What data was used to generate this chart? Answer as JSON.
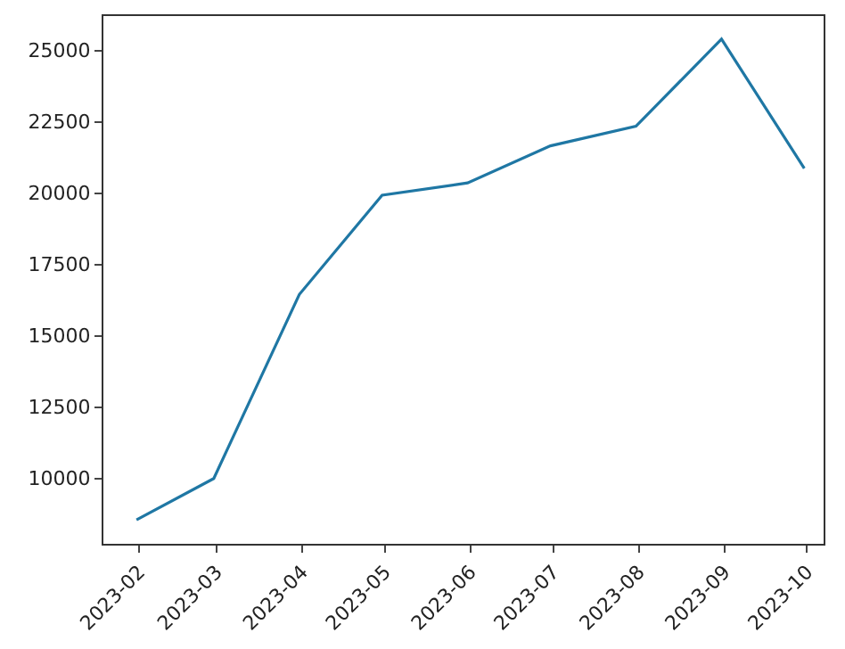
{
  "chart_data": {
    "type": "line",
    "x": [
      "2023-01-31",
      "2023-02-28",
      "2023-03-31",
      "2023-04-30",
      "2023-05-31",
      "2023-06-30",
      "2023-07-31",
      "2023-08-31",
      "2023-09-30"
    ],
    "series": [
      {
        "color": "#1f77a4",
        "values": [
          8550,
          10000,
          16450,
          19930,
          20360,
          21660,
          22350,
          25400,
          20870
        ]
      }
    ],
    "xlim": [
      "2023-01-19",
      "2023-10-07"
    ],
    "xticks": [
      "2023-02",
      "2023-03",
      "2023-04",
      "2023-05",
      "2023-06",
      "2023-07",
      "2023-08",
      "2023-09",
      "2023-10"
    ],
    "ylim": [
      7710,
      26210
    ],
    "yticks": [
      10000,
      12500,
      15000,
      17500,
      20000,
      22500,
      25000
    ],
    "marker": "none",
    "line_style": "solid"
  }
}
